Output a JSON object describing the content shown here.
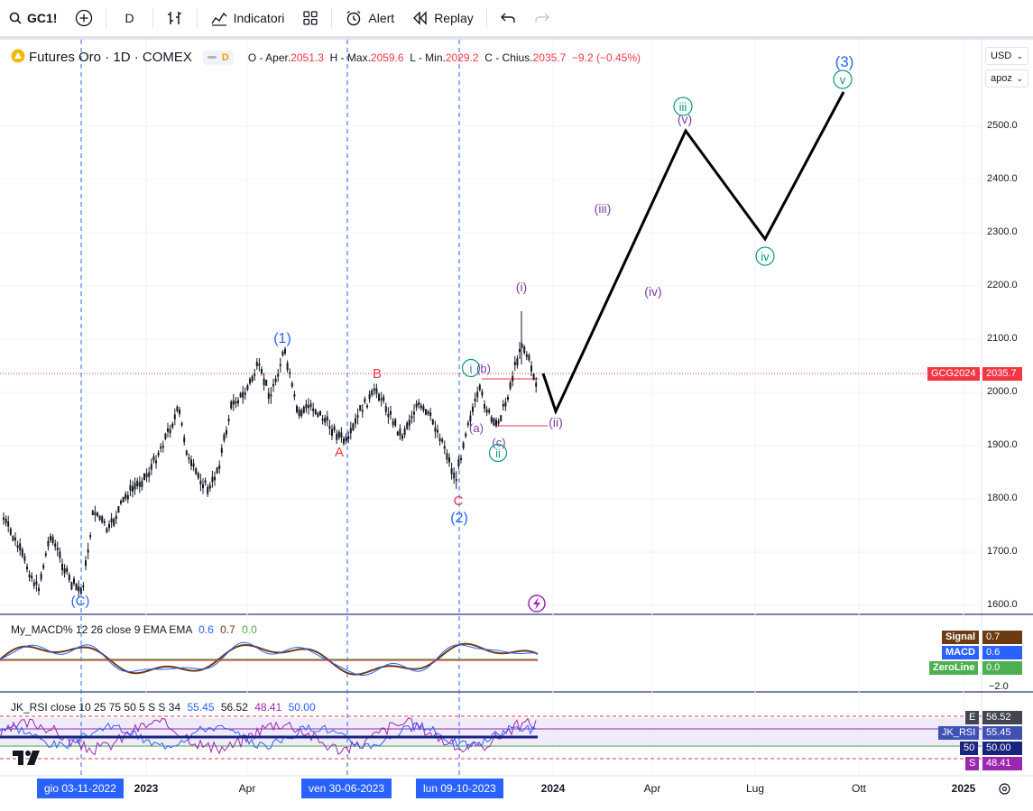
{
  "toolbar": {
    "symbol": "GC1!",
    "interval": "D",
    "indicators_label": "Indicatori",
    "alert_label": "Alert",
    "replay_label": "Replay"
  },
  "legend": {
    "title": "Futures Oro · 1D · COMEX",
    "open_label": "O - Aper.",
    "open_value": "2051.3",
    "high_label": "H - Max.",
    "high_value": "2059.6",
    "low_label": "L - Min.",
    "low_value": "2029.2",
    "close_label": "C - Chius.",
    "close_value": "2035.7",
    "change": "−9.2 (−0.45%)",
    "badge": "D"
  },
  "axis_controls": {
    "currency": "USD",
    "mode": "apoz"
  },
  "price_axis": {
    "ticks": [
      "2500.0",
      "2400.0",
      "2300.0",
      "2200.0",
      "2100.0",
      "2000.0",
      "1900.0",
      "1800.0",
      "1700.0",
      "1600.0"
    ],
    "current_symbol": "GCG2024",
    "current_price": "2035.7"
  },
  "time_axis": {
    "ticks": [
      "2023",
      "Apr",
      "2024",
      "Apr",
      "Lug",
      "Ott",
      "2025"
    ],
    "highlighted_dates": [
      "gio 03-11-2022",
      "ven 30-06-2023",
      "lun 09-10-2023"
    ]
  },
  "wave_labels": {
    "c_bottom": "(C)",
    "w1": "(1)",
    "w2": "(2)",
    "w3": "(3)",
    "A": "A",
    "B": "B",
    "C": "C",
    "i_circle": "i",
    "b_paren": "(b)",
    "a_paren": "(a)",
    "c_paren": "(c)",
    "ii_circle": "ii",
    "i_paren": "(i)",
    "ii_paren": "(ii)",
    "iii_paren": "(iii)",
    "iv_paren": "(iv)",
    "v_paren": "(v)",
    "iii_circle": "iii",
    "iv_circle": "iv",
    "v_circle": "v"
  },
  "macd": {
    "title": "My_MACD% 12 26 close 9 EMA EMA",
    "v1": "0.6",
    "v2": "0.7",
    "v3": "0.0",
    "tag_signal": "Signal",
    "tag_signal_value": "0.7",
    "tag_macd": "MACD",
    "tag_macd_value": "0.6",
    "tag_zero": "ZeroLine",
    "tag_zero_value": "0.0",
    "axis_label": "−2.0"
  },
  "rsi": {
    "title": "JK_RSI close 10 25 75 50 5 S S 34",
    "v1": "55.45",
    "v2": "56.52",
    "v3": "48.41",
    "v4": "50.00",
    "tag_e": "E",
    "tag_e_value": "56.52",
    "tag_rsi": "JK_RSI",
    "tag_rsi_value": "55.45",
    "tag_50": "50",
    "tag_50_value": "50.00",
    "tag_s": "S",
    "tag_s_value": "48.41"
  },
  "colors": {
    "wave_blue": "#2962ff",
    "wave_teal": "#089981",
    "wave_purple": "#7b3fa0",
    "abc_red": "#f23645",
    "candle": "#131722"
  }
}
